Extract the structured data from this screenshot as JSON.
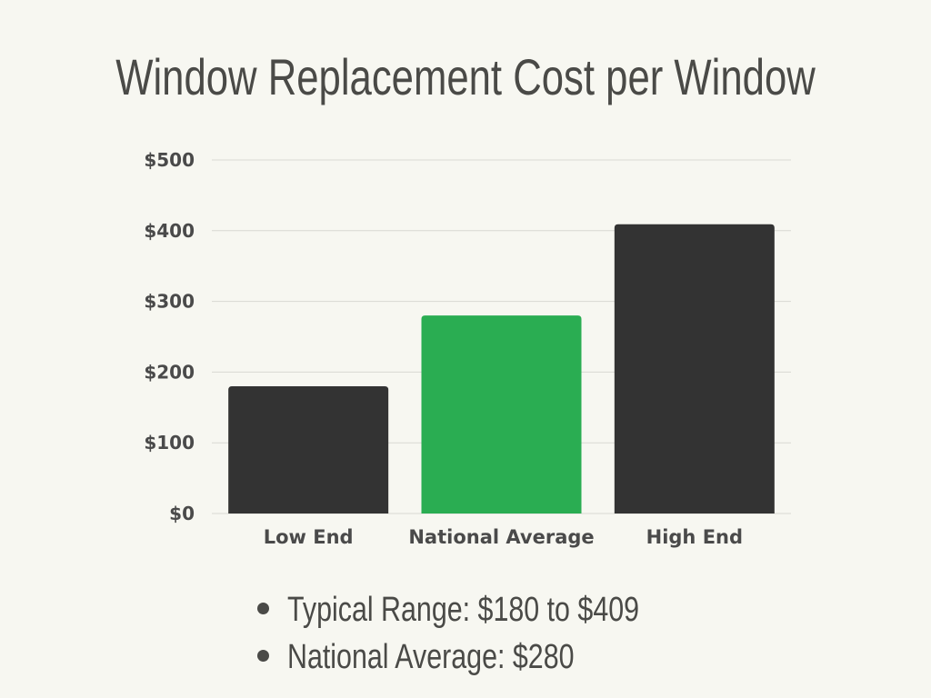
{
  "chart_data": {
    "type": "bar",
    "title": "Window Replacement Cost per Window",
    "categories": [
      "Low End",
      "National Average",
      "High End"
    ],
    "values": [
      180,
      280,
      409
    ],
    "y_ticks": [
      "$0",
      "$100",
      "$200",
      "$300",
      "$400",
      "$500"
    ],
    "y_tick_values": [
      0,
      100,
      200,
      300,
      400,
      500
    ],
    "ylim": [
      0,
      500
    ],
    "grid": true,
    "colors": [
      "#333333",
      "#2aad52",
      "#333333"
    ],
    "gridline_color": "#d8d8d2"
  },
  "notes": [
    "Typical Range: $180 to $409",
    "National Average: $280"
  ]
}
